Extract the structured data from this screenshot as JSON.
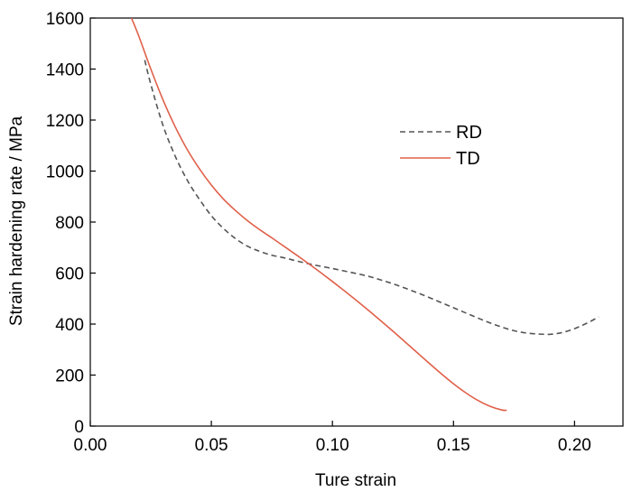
{
  "chart_data": {
    "type": "line",
    "title": "",
    "xlabel": "Ture strain",
    "ylabel": "Strain hardening rate / MPa",
    "xlim": [
      0.0,
      0.22
    ],
    "ylim": [
      0,
      1600
    ],
    "xticks": [
      0.0,
      0.05,
      0.1,
      0.15,
      0.2
    ],
    "xtick_labels": [
      "0.00",
      "0.05",
      "0.10",
      "0.15",
      "0.20"
    ],
    "yticks": [
      0,
      200,
      400,
      600,
      800,
      1000,
      1200,
      1400,
      1600
    ],
    "ytick_labels": [
      "0",
      "200",
      "400",
      "600",
      "800",
      "1000",
      "1200",
      "1400",
      "1600"
    ],
    "grid": false,
    "legend_position": "upper-right-inside",
    "series": [
      {
        "name": "RD",
        "color": "#555555",
        "line_style": "dashed",
        "x": [
          0.0225,
          0.025,
          0.03,
          0.035,
          0.04,
          0.045,
          0.05,
          0.055,
          0.06,
          0.065,
          0.07,
          0.075,
          0.08,
          0.085,
          0.09,
          0.095,
          0.1,
          0.105,
          0.11,
          0.115,
          0.12,
          0.125,
          0.13,
          0.135,
          0.14,
          0.145,
          0.15,
          0.155,
          0.16,
          0.165,
          0.17,
          0.175,
          0.18,
          0.185,
          0.19,
          0.195,
          0.2,
          0.205,
          0.21
        ],
        "y": [
          1435,
          1340,
          1180,
          1060,
          965,
          890,
          825,
          775,
          735,
          705,
          685,
          670,
          660,
          648,
          637,
          627,
          618,
          608,
          598,
          587,
          573,
          558,
          541,
          523,
          504,
          484,
          464,
          444,
          424,
          405,
          388,
          374,
          365,
          361,
          360,
          367,
          382,
          403,
          428
        ]
      },
      {
        "name": "TD",
        "color": "#e0604a",
        "line_style": "solid",
        "x": [
          0.017,
          0.02,
          0.025,
          0.03,
          0.035,
          0.04,
          0.045,
          0.05,
          0.055,
          0.06,
          0.065,
          0.07,
          0.075,
          0.08,
          0.085,
          0.09,
          0.095,
          0.1,
          0.105,
          0.11,
          0.115,
          0.12,
          0.125,
          0.13,
          0.135,
          0.14,
          0.145,
          0.15,
          0.155,
          0.16,
          0.165,
          0.17,
          0.172
        ],
        "y": [
          1600,
          1530,
          1400,
          1280,
          1175,
          1085,
          1010,
          945,
          890,
          845,
          805,
          770,
          738,
          705,
          672,
          638,
          603,
          567,
          530,
          492,
          453,
          413,
          372,
          330,
          288,
          246,
          205,
          166,
          131,
          101,
          78,
          63,
          62
        ]
      }
    ]
  }
}
